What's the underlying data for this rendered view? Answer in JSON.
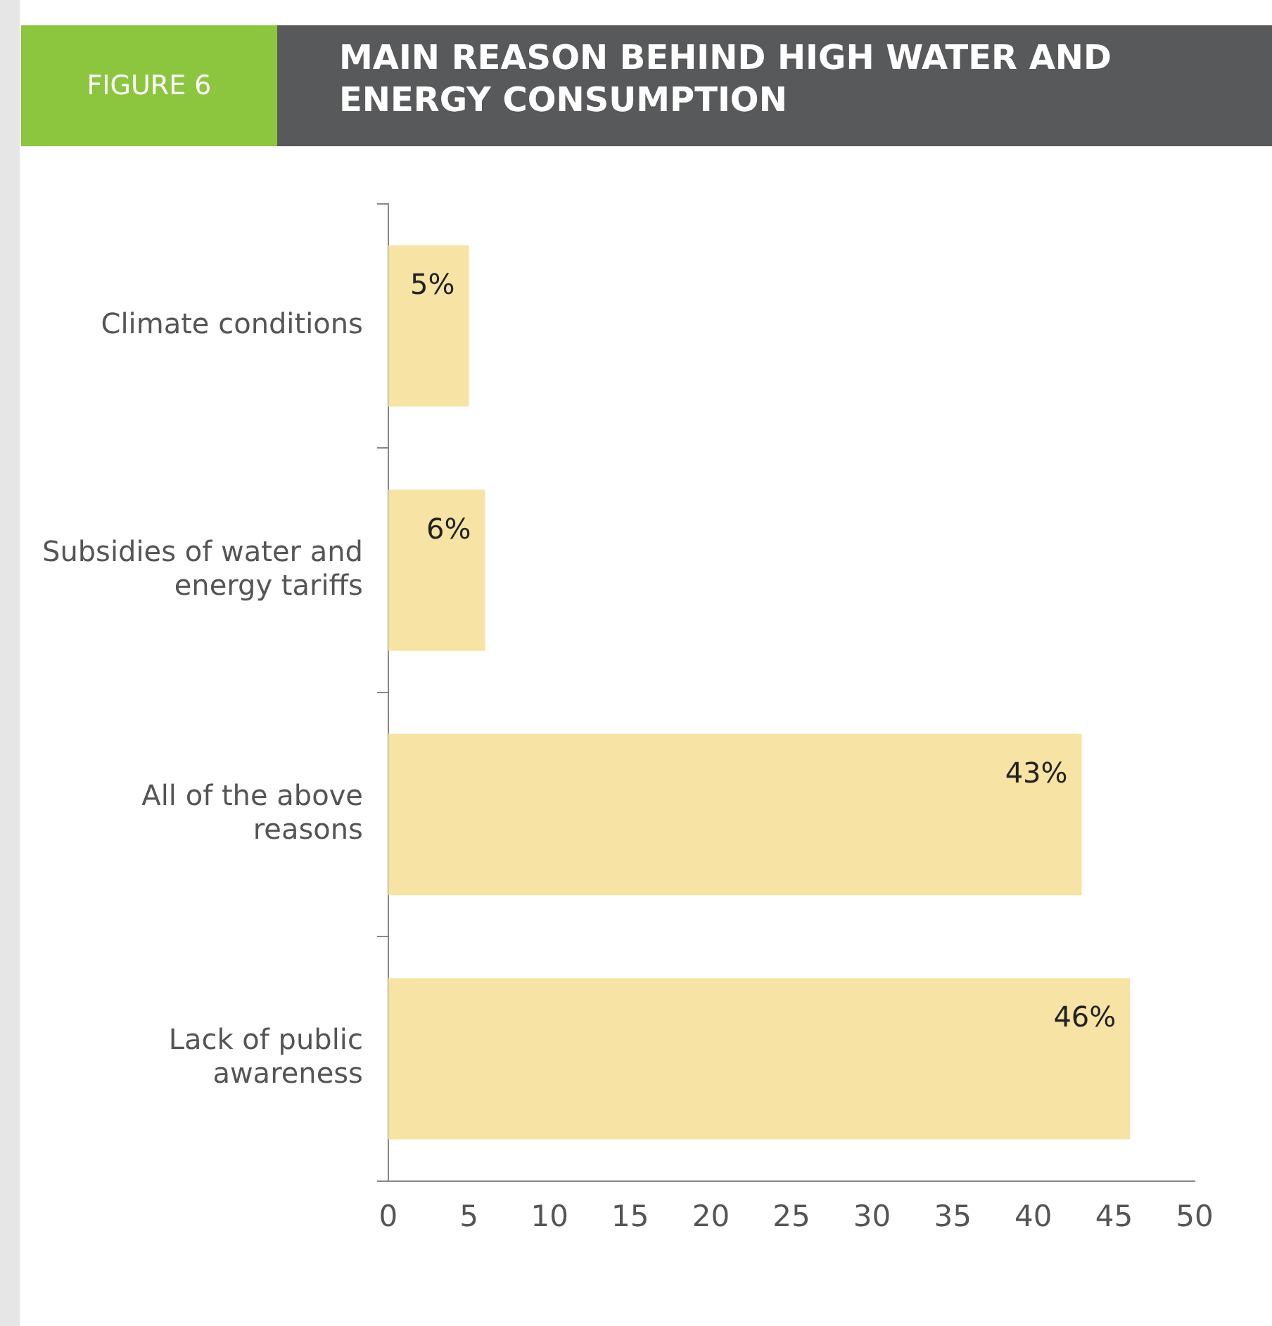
{
  "chart_data": {
    "type": "bar",
    "orientation": "horizontal",
    "title": "MAIN REASON BEHIND HIGH WATER AND ENERGY CONSUMPTION",
    "annotations": [
      "FIGURE 6"
    ],
    "categories": [
      "Climate conditions",
      "Subsidies of water and energy tariffs",
      "All of the above reasons",
      "Lack of public awareness"
    ],
    "values": [
      5,
      6,
      43,
      46
    ],
    "value_labels": [
      "5%",
      "6%",
      "43%",
      "46%"
    ],
    "color": "#f7e3a3",
    "xlim": [
      0,
      50
    ],
    "xticks": [
      0,
      5,
      10,
      15,
      20,
      25,
      30,
      35,
      40,
      45,
      50
    ],
    "grid": false,
    "legend": false
  }
}
